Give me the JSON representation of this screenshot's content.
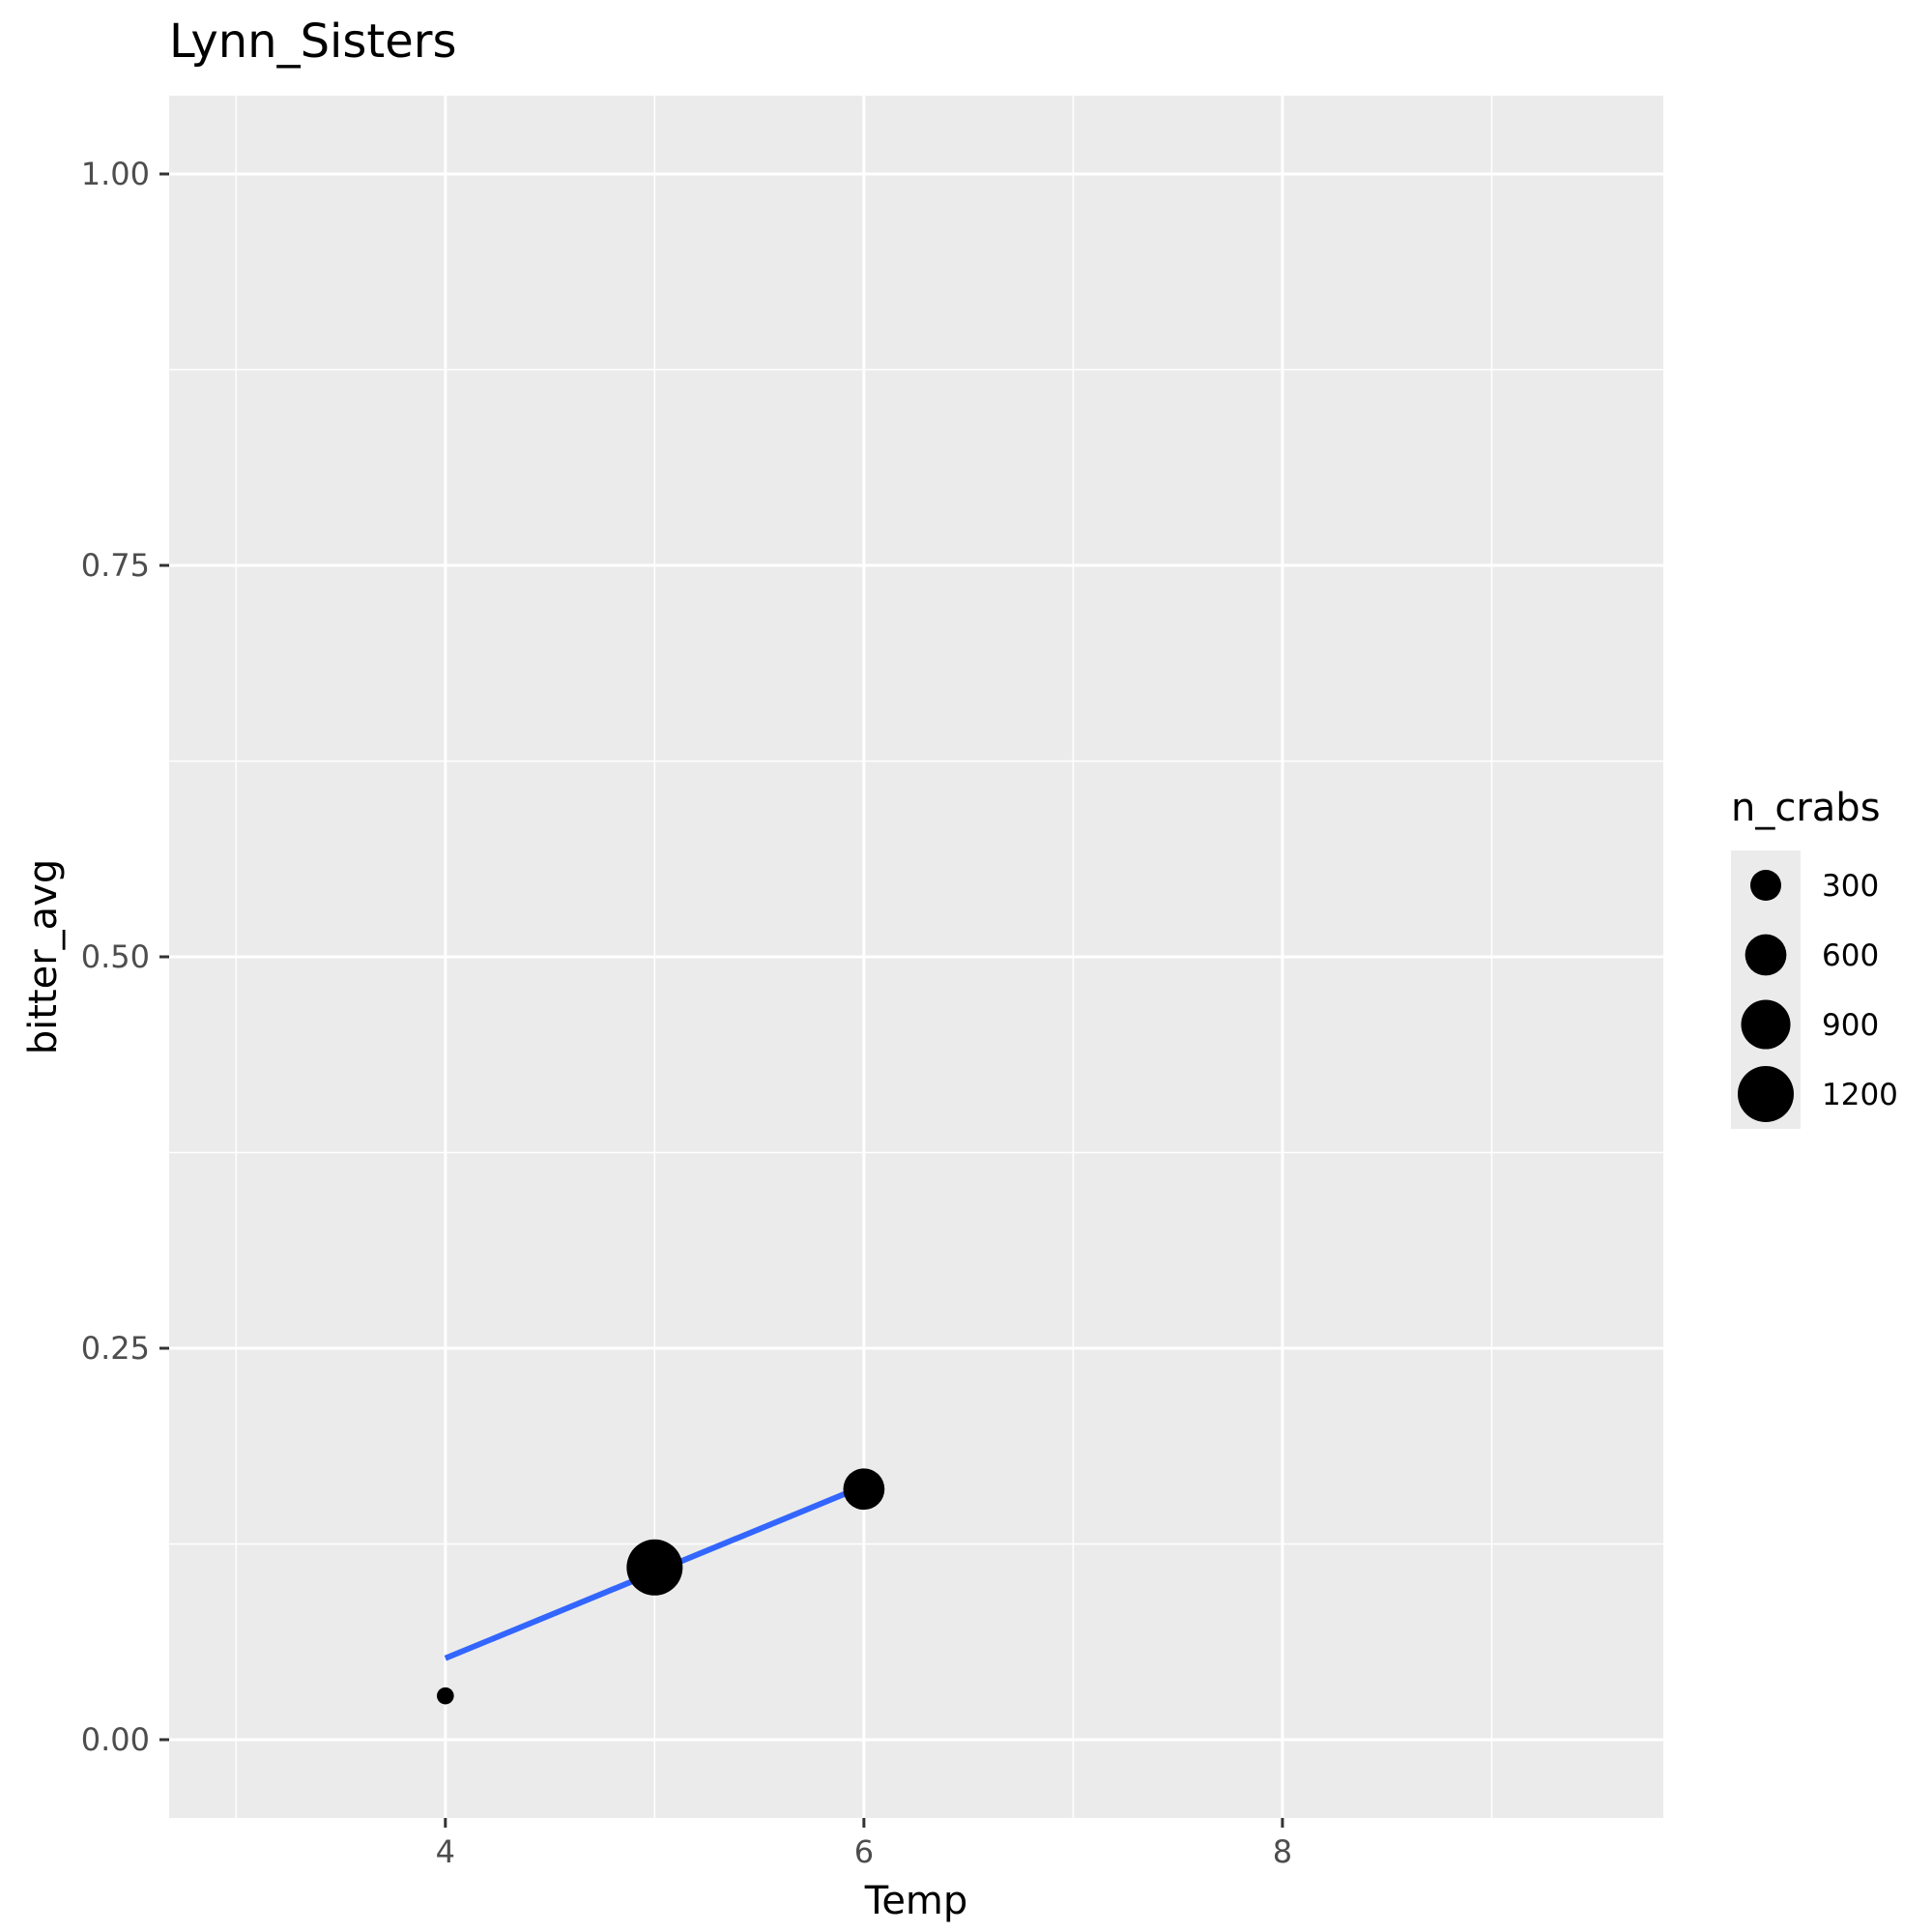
{
  "chart_data": {
    "type": "scatter",
    "title": "Lynn_Sisters",
    "xlabel": "Temp",
    "ylabel": "bitter_avg",
    "xlim": [
      2.68,
      9.82
    ],
    "ylim": [
      -0.05,
      1.05
    ],
    "x_ticks": [
      4,
      6,
      8
    ],
    "x_minor": [
      3,
      5,
      7,
      9
    ],
    "y_ticks": [
      0.0,
      0.25,
      0.5,
      0.75,
      1.0
    ],
    "y_tick_labels": [
      "0.00",
      "0.25",
      "0.50",
      "0.75",
      "1.00"
    ],
    "y_minor": [
      0.125,
      0.375,
      0.625,
      0.875
    ],
    "grid": true,
    "points": [
      {
        "x": 4,
        "y": 0.028,
        "n_crabs": 60
      },
      {
        "x": 5,
        "y": 0.11,
        "n_crabs": 1200
      },
      {
        "x": 6,
        "y": 0.16,
        "n_crabs": 600
      }
    ],
    "trend_line": {
      "color": "#3366ff",
      "x": [
        4,
        6
      ],
      "y": [
        0.052,
        0.162
      ]
    },
    "legend": {
      "title": "n_crabs",
      "position": "right",
      "entries": [
        {
          "label": "300",
          "value": 300
        },
        {
          "label": "600",
          "value": 600
        },
        {
          "label": "900",
          "value": 900
        },
        {
          "label": "1200",
          "value": 1200
        }
      ]
    },
    "colors": {
      "panel": "#ebebeb",
      "grid": "#ffffff",
      "point": "#000000"
    }
  }
}
